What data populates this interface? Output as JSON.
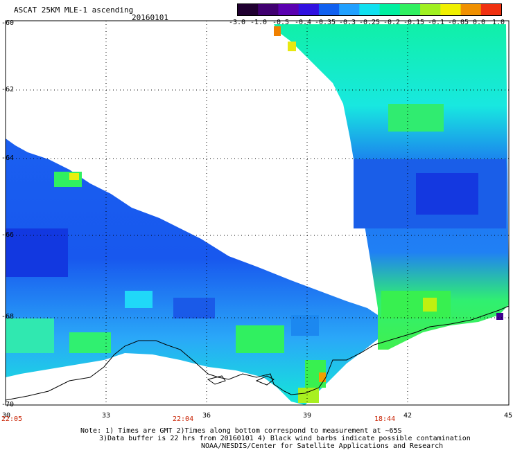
{
  "header": {
    "title": "ASCAT 25KM MLE-1 ascending",
    "date": "20160101"
  },
  "colorbar": {
    "labels": [
      "-3.0",
      "-1.0",
      "-0.5",
      "-0.4",
      "-0.35",
      "-0.3",
      "-0.25",
      "-0.2",
      "-0.15",
      "-0.1",
      "-0.05",
      "0.0",
      "1.0"
    ],
    "colors": [
      "#200030",
      "#400070",
      "#5a00b0",
      "#3010e0",
      "#1060f0",
      "#20a0ff",
      "#10e0f0",
      "#00f0a0",
      "#30f060",
      "#a0f020",
      "#f0f000",
      "#f09000",
      "#f03010"
    ]
  },
  "map": {
    "lat_ticks": [
      "-60",
      "-62",
      "-64",
      "-66",
      "-68",
      "-70"
    ],
    "lon_ticks": [
      "30",
      "33",
      "36",
      "39",
      "42",
      "45"
    ],
    "times": [
      "22:05",
      "22:04",
      "18:44"
    ]
  },
  "notes": {
    "line1": "Note: 1) Times are GMT 2)Times along bottom correspond to measurement at ~65S",
    "line2": "3)Data buffer is 22 hrs from 20160101 4) Black wind barbs indicate possible contamination",
    "line3": "NOAA/NESDIS/Center for Satellite Applications and Research"
  }
}
